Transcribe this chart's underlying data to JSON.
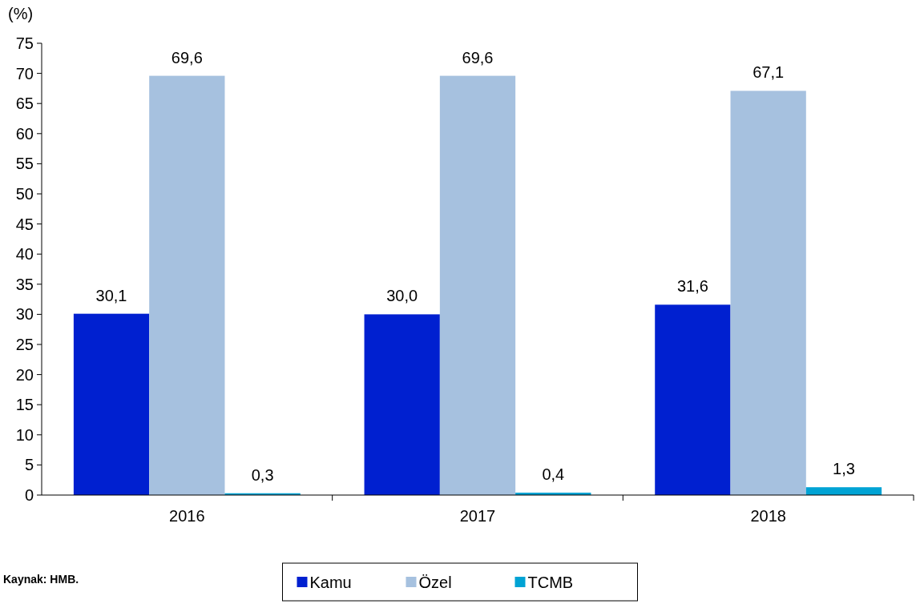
{
  "chart_data": {
    "type": "bar",
    "ylabel": "(%)",
    "categories": [
      "2016",
      "2017",
      "2018"
    ],
    "series": [
      {
        "name": "Kamu",
        "color": "#0020d0",
        "values": [
          30.1,
          30.0,
          31.6
        ],
        "value_labels": [
          "30,1",
          "30,0",
          "31,6"
        ]
      },
      {
        "name": "Özel",
        "color": "#a6c1df",
        "values": [
          69.6,
          69.6,
          67.1
        ],
        "value_labels": [
          "69,6",
          "69,6",
          "67,1"
        ]
      },
      {
        "name": "TCMB",
        "color": "#00a3d4",
        "values": [
          0.3,
          0.4,
          1.3
        ],
        "value_labels": [
          "0,3",
          "0,4",
          "1,3"
        ]
      }
    ],
    "ylim": [
      0,
      75
    ],
    "yticks": [
      0,
      5,
      10,
      15,
      20,
      25,
      30,
      35,
      40,
      45,
      50,
      55,
      60,
      65,
      70,
      75
    ],
    "grid": false,
    "legend": "bottom",
    "annotations": [
      "Kaynak: HMB."
    ]
  }
}
